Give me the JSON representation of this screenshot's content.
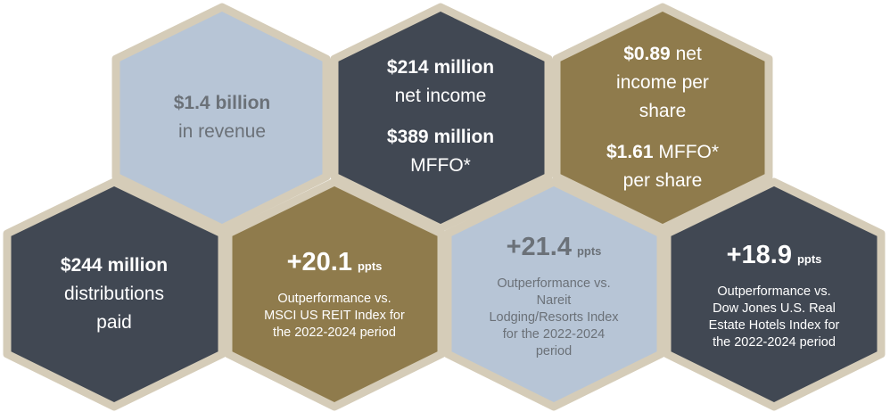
{
  "colors": {
    "border": "#d5ccb8",
    "light_blue": "#b7c5d6",
    "dark_slate": "#414853",
    "gold": "#8f7b4c"
  },
  "hexes": {
    "revenue": {
      "value": "$1.4 billion",
      "label": "in revenue",
      "fill": "light_blue"
    },
    "net_income": {
      "value": "$214 million",
      "label": "net income",
      "value2": "$389 million",
      "label2": "MFFO*",
      "fill": "dark_slate"
    },
    "per_share": {
      "value": "$0.89",
      "label_line1": "net",
      "label_line2": "income per",
      "label_line3": "share",
      "value2": "$1.61",
      "label2_line1": "MFFO*",
      "label2_line2": "per share",
      "fill": "gold"
    },
    "distributions": {
      "value": "$244 million",
      "label_line1": "distributions",
      "label_line2": "paid",
      "fill": "dark_slate"
    },
    "msci": {
      "value": "+20.1",
      "unit": "ppts",
      "desc_line1": "Outperformance vs.",
      "desc_line2": "MSCI US REIT Index for",
      "desc_line3": "the 2022-2024 period",
      "fill": "gold"
    },
    "nareit": {
      "value": "+21.4",
      "unit": "ppts",
      "desc_line1": "Outperformance vs.",
      "desc_line2": "Nareit",
      "desc_line3": "Lodging/Resorts Index",
      "desc_line4": "for the 2022-2024",
      "desc_line5": "period",
      "fill": "light_blue"
    },
    "dow_jones": {
      "value": "+18.9",
      "unit": "ppts",
      "desc_line1": "Outperformance vs.",
      "desc_line2": "Dow Jones U.S. Real",
      "desc_line3": "Estate Hotels Index for",
      "desc_line4": "the 2022-2024 period",
      "fill": "dark_slate"
    }
  }
}
